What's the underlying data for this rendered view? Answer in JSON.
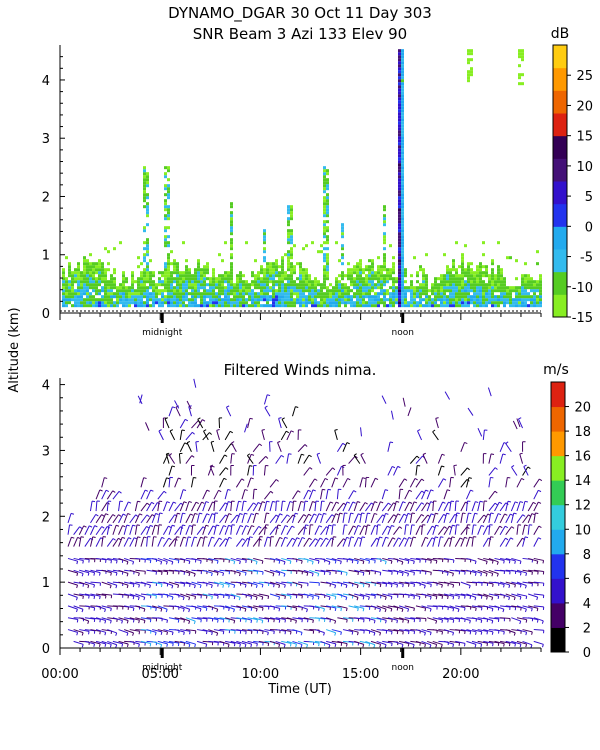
{
  "figure": {
    "title_line1": "DYNAMO_DGAR  30 Oct 11 Day 303",
    "title_line2": "SNR Beam 3 Azi 133 Elev 90",
    "shared_ylabel": "Altitude (km)",
    "xlabel": "Time (UT)"
  },
  "chart_data": [
    {
      "type": "heatmap",
      "title": "SNR Beam 3 Azi 133 Elev 90",
      "ylim": [
        0,
        4.6
      ],
      "yticks": [
        "0",
        "1",
        "2",
        "3",
        "4"
      ],
      "x_markers": [
        "midnight",
        "noon"
      ],
      "colorbar": {
        "unit": "dB",
        "ticks": [
          "-15",
          "-10",
          "-5",
          "0",
          "5",
          "10",
          "15",
          "20",
          "25"
        ],
        "range": [
          -15,
          30
        ],
        "colors": [
          "#88ee22",
          "#55cc22",
          "#33bbee",
          "#22aaee",
          "#2233ee",
          "#3311cc",
          "#441177",
          "#330055",
          "#dd2211",
          "#ee6600",
          "#ff9900",
          "#ffcc11"
        ]
      },
      "description_values": {
        "boundary_layer_top_km": 0.7,
        "convective_plume_time_UT": 16.9,
        "convective_plume_top_km": 4.5
      }
    },
    {
      "type": "scatter",
      "title": "Filtered Winds nima.",
      "xlim": [
        0,
        24
      ],
      "ylim": [
        0,
        4.1
      ],
      "xticks": [
        "00:00",
        "05:00",
        "10:00",
        "15:00",
        "20:00"
      ],
      "xtick_values": [
        0,
        5,
        10,
        15,
        20
      ],
      "yticks": [
        "0",
        "1",
        "2",
        "3",
        "4"
      ],
      "x_markers": [
        "midnight",
        "noon"
      ],
      "colorbar": {
        "unit": "m/s",
        "ticks": [
          "0",
          "2",
          "4",
          "6",
          "8",
          "10",
          "12",
          "14",
          "16",
          "18",
          "20"
        ],
        "range": [
          0,
          22
        ],
        "colors": [
          "#000000",
          "#440066",
          "#3311cc",
          "#2233ee",
          "#22aaee",
          "#33ccdd",
          "#33cc55",
          "#88ee22",
          "#ff9900",
          "#ee6600",
          "#dd2211"
        ]
      }
    }
  ]
}
